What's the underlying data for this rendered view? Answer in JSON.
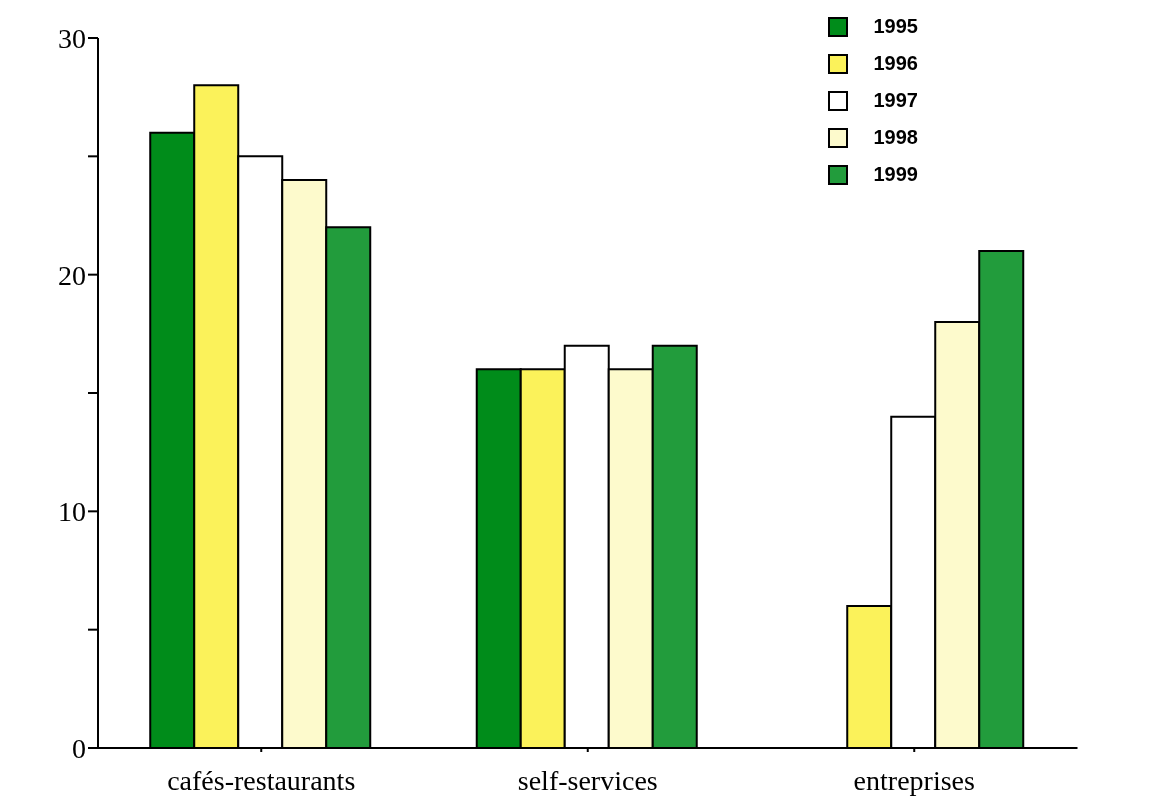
{
  "chart_data": {
    "type": "bar",
    "categories": [
      "cafés-restaurants",
      "self-services",
      "entreprises"
    ],
    "series": [
      {
        "name": "1995",
        "color": "#008c1a",
        "values": [
          26,
          16,
          null
        ]
      },
      {
        "name": "1996",
        "color": "#fbf25a",
        "values": [
          28,
          16,
          6
        ]
      },
      {
        "name": "1997",
        "color": "#ffffff",
        "values": [
          25,
          17,
          14
        ]
      },
      {
        "name": "1998",
        "color": "#fdfacc",
        "values": [
          24,
          16,
          18
        ]
      },
      {
        "name": "1999",
        "color": "#229c3c",
        "values": [
          22,
          17,
          21
        ]
      }
    ],
    "ylim": [
      0,
      30
    ],
    "yticks": [
      0,
      {
        "value": 5,
        "label": null
      },
      10,
      {
        "value": 15,
        "label": null
      },
      20,
      {
        "value": 25,
        "label": null
      },
      30
    ],
    "grid": false,
    "legend": "top right"
  }
}
